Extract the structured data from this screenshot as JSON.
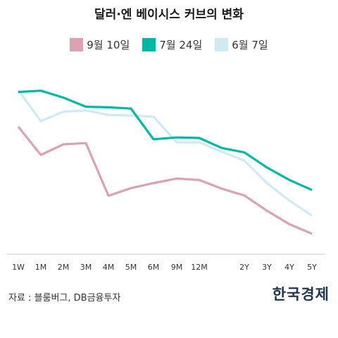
{
  "chart_data": {
    "type": "line",
    "title": "달러·엔 베이시스 커브의 변화",
    "categories": [
      "1W",
      "1M",
      "2M",
      "3M",
      "4M",
      "5M",
      "6M",
      "9M",
      "12M",
      "",
      "2Y",
      "3Y",
      "4Y",
      "5Y"
    ],
    "series": [
      {
        "name": "9월 10일",
        "color": "#dba2b2",
        "values": [
          -60.0,
          -80.0,
          -72.5,
          -71.6,
          -109.0,
          -103.6,
          -100.0,
          -96.8,
          -97.8,
          -104.0,
          -108.8,
          -119.6,
          -129.2,
          -136.0
        ]
      },
      {
        "name": "7월 24일",
        "color": "#00b9a5",
        "values": [
          -35.3,
          -34.4,
          -39.3,
          -45.8,
          -46.2,
          -47.1,
          -68.9,
          -67.6,
          -68.0,
          -75.1,
          -78.2,
          -88.9,
          -97.8,
          -104.9
        ]
      },
      {
        "name": "6월 7일",
        "color": "#cfeaf3",
        "values": [
          -34.0,
          -56.0,
          -49.3,
          -48.4,
          -51.6,
          -52.0,
          -52.9,
          -71.1,
          -71.1,
          -77.8,
          -84.0,
          -100.0,
          -112.4,
          -123.1
        ]
      }
    ],
    "ylim": [
      -150,
      -20
    ],
    "grid": false,
    "legend": "top"
  },
  "source": "자료 : 블룸버그, DB금융투자",
  "logo": "한국경제"
}
